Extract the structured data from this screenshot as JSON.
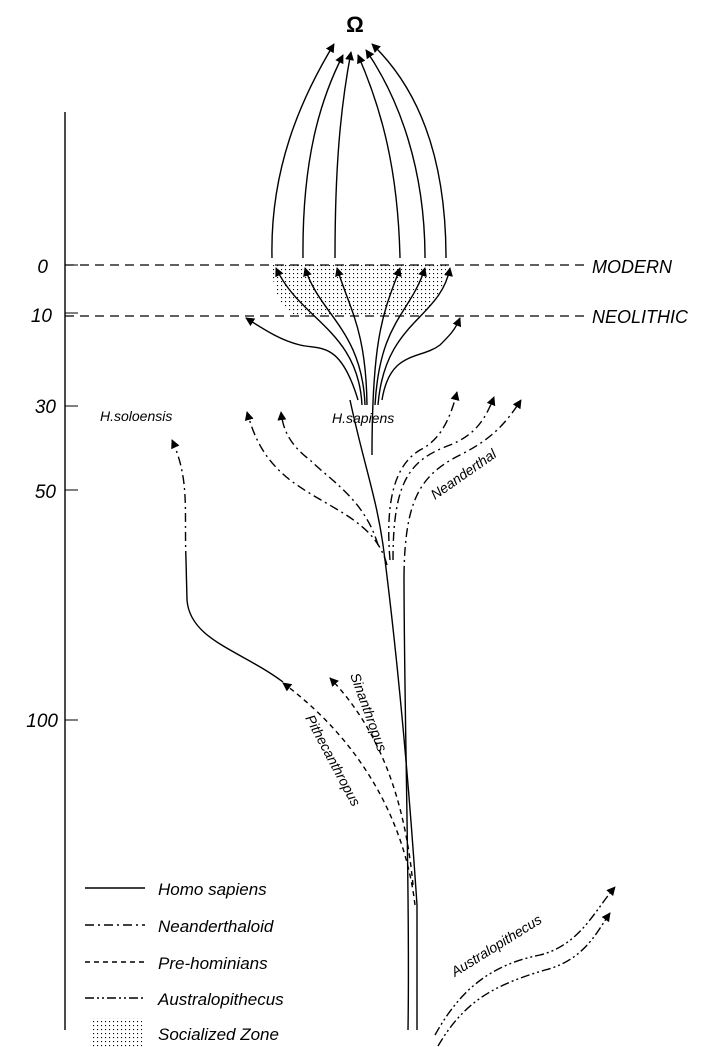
{
  "omega": "Ω",
  "axis": {
    "ticks": [
      {
        "label": "0",
        "value": 0
      },
      {
        "label": "10",
        "value": 10
      },
      {
        "label": "30",
        "value": 30
      },
      {
        "label": "50",
        "value": 50
      },
      {
        "label": "100",
        "value": 100
      }
    ]
  },
  "horizons": {
    "modern": "MODERN",
    "neolithic": "NEOLITHIC"
  },
  "labels": {
    "h_soloensis": "H.soloensis",
    "h_sapiens": "H.sapiens",
    "neanderthal": "Neanderthal",
    "sinanthropus": "Sinanthropus",
    "pithecanthropus": "Pithecanthropus",
    "australopithecus": "Australopithecus"
  },
  "legend": [
    {
      "label": "Homo sapiens",
      "style": "solid"
    },
    {
      "label": "Neanderthaloid",
      "style": "dash-dot"
    },
    {
      "label": "Pre-hominians",
      "style": "dashed"
    },
    {
      "label": "Australopithecus",
      "style": "dash-dot-dot"
    },
    {
      "label": "Socialized Zone",
      "style": "stipple"
    }
  ]
}
